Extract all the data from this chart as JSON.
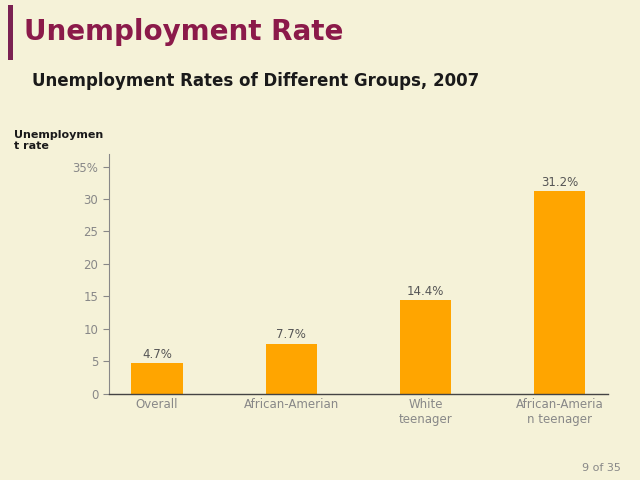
{
  "slide_title": "Unemployment Rate",
  "chart_title": "Unemployment Rates of Different Groups, 2007",
  "ylabel": "Unemploymen\nt rate",
  "categories": [
    "Overall",
    "African-Amerian",
    "White\nteenager",
    "African-Ameria\nn teenager"
  ],
  "values": [
    4.7,
    7.7,
    14.4,
    31.2
  ],
  "labels": [
    "4.7%",
    "7.7%",
    "14.4%",
    "31.2%"
  ],
  "bar_color": "#FFA500",
  "background_color": "#F5F2D8",
  "slide_title_color": "#8B1A4A",
  "chart_title_color": "#1A1A1A",
  "ylabel_color": "#1A1A1A",
  "ytick_values": [
    0,
    5,
    10,
    15,
    20,
    25,
    30,
    35
  ],
  "ytick_labels": [
    "0",
    "5",
    "10",
    "15",
    "20",
    "25",
    "30",
    "35%"
  ],
  "ylim": [
    0,
    37
  ],
  "accent_bar_color": "#7B2252",
  "separator_color": "#C8B89A",
  "tick_color": "#888888",
  "label_color": "#555555",
  "page_note": "9 of 35",
  "page_note_color": "#888888"
}
